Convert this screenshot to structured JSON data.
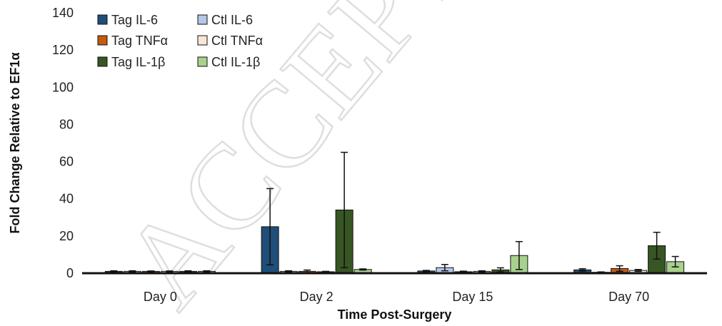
{
  "watermark": "ACCEPTED MANUSCRIPT",
  "chart_data": {
    "type": "bar",
    "xlabel": "Time Post-Surgery",
    "ylabel": "Fold Change Relative to EF1α",
    "ylim": [
      0,
      140
    ],
    "yticks": [
      0,
      20,
      40,
      60,
      80,
      100,
      120,
      140
    ],
    "grid": false,
    "legend_position": "top-left",
    "categories": [
      "Day 0",
      "Day 2",
      "Day 15",
      "Day 70"
    ],
    "series": [
      {
        "name": "Tag IL-6",
        "color": "#1f4e79",
        "values": [
          1,
          25,
          1.2,
          1.8
        ],
        "errors": [
          0.3,
          20.5,
          0.3,
          0.6
        ]
      },
      {
        "name": "Ctl IL-6",
        "color": "#b4c7e7",
        "values": [
          1,
          1,
          3,
          0.5
        ],
        "errors": [
          0.3,
          0.3,
          1.7,
          0.2
        ]
      },
      {
        "name": "Tag TNFα",
        "color": "#c55a11",
        "values": [
          1,
          1,
          0.8,
          2.5
        ],
        "errors": [
          0.2,
          0.7,
          0.3,
          1.5
        ]
      },
      {
        "name": "Ctl TNFα",
        "color": "#fbe5d6",
        "values": [
          1,
          0.8,
          1,
          1.5
        ],
        "errors": [
          0.2,
          0.2,
          0.3,
          0.5
        ]
      },
      {
        "name": "Tag IL-1β",
        "color": "#375623",
        "values": [
          1,
          34,
          1.8,
          14.8
        ],
        "errors": [
          0.3,
          31,
          1.1,
          7.2
        ]
      },
      {
        "name": "Ctl IL-1β",
        "color": "#a9d18e",
        "values": [
          1,
          2,
          9.5,
          6.2
        ],
        "errors": [
          0.3,
          0.3,
          7.5,
          2.8
        ]
      }
    ]
  }
}
